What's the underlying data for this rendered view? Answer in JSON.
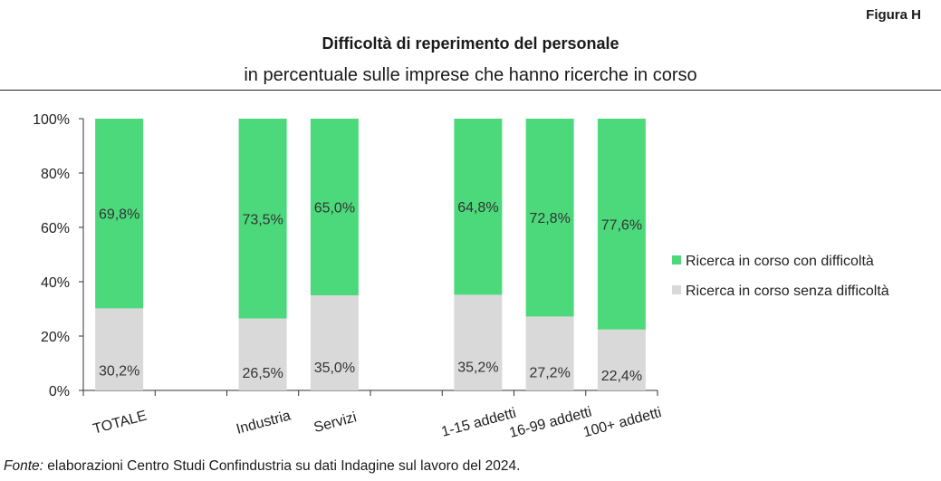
{
  "header": {
    "figure_label": "Figura H",
    "title": "Difficoltà di reperimento del personale",
    "subtitle": "in percentuale sulle imprese che hanno ricerche in corso"
  },
  "footer": {
    "source_label": "Fonte:",
    "source_text": "elaborazioni Centro Studi Confindustria su dati Indagine sul lavoro del 2024."
  },
  "chart_data": {
    "type": "bar",
    "stacked": true,
    "categories": [
      "TOTALE",
      "",
      "Industria",
      "Servizi",
      "",
      "1-15 addetti",
      "16-99 addetti",
      "100+ addetti"
    ],
    "series": [
      {
        "name": "Ricerca in corso senza difficoltà",
        "color": "#d9d9d9",
        "values": [
          30.2,
          null,
          26.5,
          35.0,
          null,
          35.2,
          27.2,
          22.4
        ],
        "labels": [
          "30,2%",
          "",
          "26,5%",
          "35,0%",
          "",
          "35,2%",
          "27,2%",
          "22,4%"
        ]
      },
      {
        "name": "Ricerca in corso con difficoltà",
        "color": "#4cd97b",
        "values": [
          69.8,
          null,
          73.5,
          65.0,
          null,
          64.8,
          72.8,
          77.6
        ],
        "labels": [
          "69,8%",
          "",
          "73,5%",
          "65,0%",
          "",
          "64,8%",
          "72,8%",
          "77,6%"
        ]
      }
    ],
    "yticks": [
      "0%",
      "20%",
      "40%",
      "60%",
      "80%",
      "100%"
    ],
    "ylim": [
      0,
      100
    ],
    "legend_position": "right",
    "legend_order": [
      "Ricerca in corso con difficoltà",
      "Ricerca in corso senza difficoltà"
    ]
  }
}
